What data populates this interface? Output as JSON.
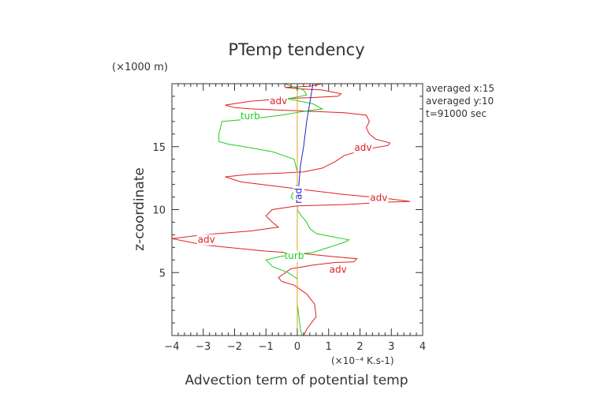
{
  "chart_data": {
    "type": "line",
    "title": "PTemp tendency",
    "xlabel": "Advection term of potential temp",
    "ylabel": "z-coordinate",
    "x_unit_label": "(×10⁻⁴ K.s-1)",
    "y_unit_label": "(×1000 m)",
    "xlim": [
      -4,
      4
    ],
    "ylim": [
      0,
      20
    ],
    "x_ticks": [
      -4,
      -3,
      -2,
      -1,
      0,
      1,
      2,
      3,
      4
    ],
    "y_ticks": [
      5,
      10,
      15
    ],
    "grid": false,
    "info_text": [
      "averaged  x:15",
      "averaged  y:10",
      "t=91000 sec"
    ],
    "colors": {
      "adv": "#e02020",
      "turb": "#22cc22",
      "rad": "#2222cc",
      "other": "#e6a020",
      "axis": "#333333"
    },
    "series": [
      {
        "name": "adv",
        "color": "#e02020",
        "points": [
          [
            0.2,
            0.0
          ],
          [
            0.3,
            0.5
          ],
          [
            0.6,
            1.5
          ],
          [
            0.55,
            2.5
          ],
          [
            0.3,
            3.3
          ],
          [
            -0.1,
            4.0
          ],
          [
            -0.5,
            4.3
          ],
          [
            -0.6,
            4.6
          ],
          [
            -0.2,
            5.3
          ],
          [
            0.5,
            5.6
          ],
          [
            1.2,
            5.8
          ],
          [
            1.8,
            5.85
          ],
          [
            1.9,
            6.1
          ],
          [
            1.0,
            6.3
          ],
          [
            0.2,
            6.5
          ],
          [
            -1.0,
            6.7
          ],
          [
            -3.0,
            7.2
          ],
          [
            -4.0,
            7.7
          ],
          [
            -3.0,
            8.0
          ],
          [
            -1.5,
            8.3
          ],
          [
            -0.6,
            8.6
          ],
          [
            -0.8,
            9.0
          ],
          [
            -1.0,
            9.5
          ],
          [
            -0.8,
            10.0
          ],
          [
            0.0,
            10.3
          ],
          [
            1.5,
            10.4
          ],
          [
            3.0,
            10.6
          ],
          [
            3.6,
            10.65
          ],
          [
            2.8,
            10.9
          ],
          [
            1.5,
            11.2
          ],
          [
            0.5,
            11.5
          ],
          [
            -0.5,
            11.8
          ],
          [
            -1.8,
            12.2
          ],
          [
            -2.3,
            12.6
          ],
          [
            -1.5,
            12.8
          ],
          [
            -0.5,
            12.9
          ],
          [
            0.2,
            13.0
          ],
          [
            0.8,
            13.3
          ],
          [
            1.2,
            13.8
          ],
          [
            1.5,
            14.3
          ],
          [
            2.2,
            14.8
          ],
          [
            2.9,
            15.1
          ],
          [
            2.95,
            15.3
          ],
          [
            2.5,
            15.6
          ],
          [
            2.3,
            16.0
          ],
          [
            2.2,
            16.5
          ],
          [
            2.3,
            17.0
          ],
          [
            2.2,
            17.5
          ],
          [
            1.5,
            17.7
          ],
          [
            0.5,
            17.8
          ],
          [
            -0.5,
            17.9
          ],
          [
            -1.5,
            18.0
          ],
          [
            -2.0,
            18.1
          ],
          [
            -2.3,
            18.3
          ],
          [
            -1.5,
            18.6
          ],
          [
            -0.5,
            18.8
          ],
          [
            0.5,
            18.9
          ],
          [
            1.3,
            19.0
          ],
          [
            1.4,
            19.2
          ],
          [
            0.8,
            19.5
          ],
          [
            0.0,
            19.6
          ],
          [
            -0.4,
            19.7
          ],
          [
            0.4,
            19.8
          ],
          [
            0.8,
            20.0
          ]
        ]
      },
      {
        "name": "turb",
        "color": "#22cc22",
        "points": [
          [
            0.15,
            0.0
          ],
          [
            0.1,
            0.5
          ],
          [
            0.05,
            1.5
          ],
          [
            0.0,
            2.5
          ],
          [
            0.0,
            3.5
          ],
          [
            0.0,
            4.5
          ],
          [
            -0.3,
            5.0
          ],
          [
            -0.8,
            5.5
          ],
          [
            -1.0,
            6.0
          ],
          [
            -0.5,
            6.3
          ],
          [
            0.5,
            6.6
          ],
          [
            1.5,
            7.4
          ],
          [
            1.65,
            7.6
          ],
          [
            1.0,
            7.9
          ],
          [
            0.6,
            8.1
          ],
          [
            0.4,
            8.5
          ],
          [
            0.3,
            9.0
          ],
          [
            0.1,
            9.6
          ],
          [
            0.0,
            10.0
          ],
          [
            0.0,
            10.5
          ],
          [
            -0.2,
            11.0
          ],
          [
            -0.1,
            11.5
          ],
          [
            0.0,
            12.0
          ],
          [
            0.0,
            13.0
          ],
          [
            -0.1,
            14.0
          ],
          [
            -0.8,
            14.6
          ],
          [
            -1.7,
            15.0
          ],
          [
            -2.2,
            15.2
          ],
          [
            -2.5,
            15.4
          ],
          [
            -2.5,
            16.0
          ],
          [
            -2.4,
            17.0
          ],
          [
            -1.5,
            17.2
          ],
          [
            -0.5,
            17.5
          ],
          [
            0.2,
            17.8
          ],
          [
            0.8,
            18.0
          ],
          [
            0.5,
            18.4
          ],
          [
            -0.3,
            18.8
          ],
          [
            0.3,
            19.1
          ],
          [
            0.2,
            19.5
          ],
          [
            -0.2,
            19.8
          ],
          [
            -0.4,
            20.0
          ]
        ]
      },
      {
        "name": "rad",
        "color": "#2222cc",
        "points": [
          [
            0.0,
            0.0
          ],
          [
            0.0,
            3.0
          ],
          [
            0.0,
            6.0
          ],
          [
            0.0,
            8.0
          ],
          [
            0.0,
            10.0
          ],
          [
            0.05,
            12.0
          ],
          [
            0.1,
            13.5
          ],
          [
            0.2,
            15.0
          ],
          [
            0.3,
            17.0
          ],
          [
            0.4,
            18.5
          ],
          [
            0.5,
            20.0
          ]
        ]
      },
      {
        "name": "",
        "color": "#e6a020",
        "points": [
          [
            0.0,
            0.0
          ],
          [
            0.0,
            20.0
          ]
        ]
      }
    ],
    "annotations": [
      {
        "text": "adv",
        "x": -0.6,
        "y": 18.6,
        "color": "#e02020"
      },
      {
        "text": "adv",
        "x": 2.1,
        "y": 14.9,
        "color": "#e02020"
      },
      {
        "text": "adv",
        "x": 2.6,
        "y": 10.9,
        "color": "#e02020"
      },
      {
        "text": "adv",
        "x": -2.9,
        "y": 7.6,
        "color": "#e02020"
      },
      {
        "text": "adv",
        "x": 1.3,
        "y": 5.2,
        "color": "#e02020"
      },
      {
        "text": "turb",
        "x": -1.5,
        "y": 17.4,
        "color": "#22cc22"
      },
      {
        "text": "turb",
        "x": -0.1,
        "y": 6.3,
        "color": "#22cc22"
      },
      {
        "text": "rad",
        "x": 0.05,
        "y": 11.1,
        "color": "#2222cc",
        "rotate": -90
      }
    ]
  }
}
